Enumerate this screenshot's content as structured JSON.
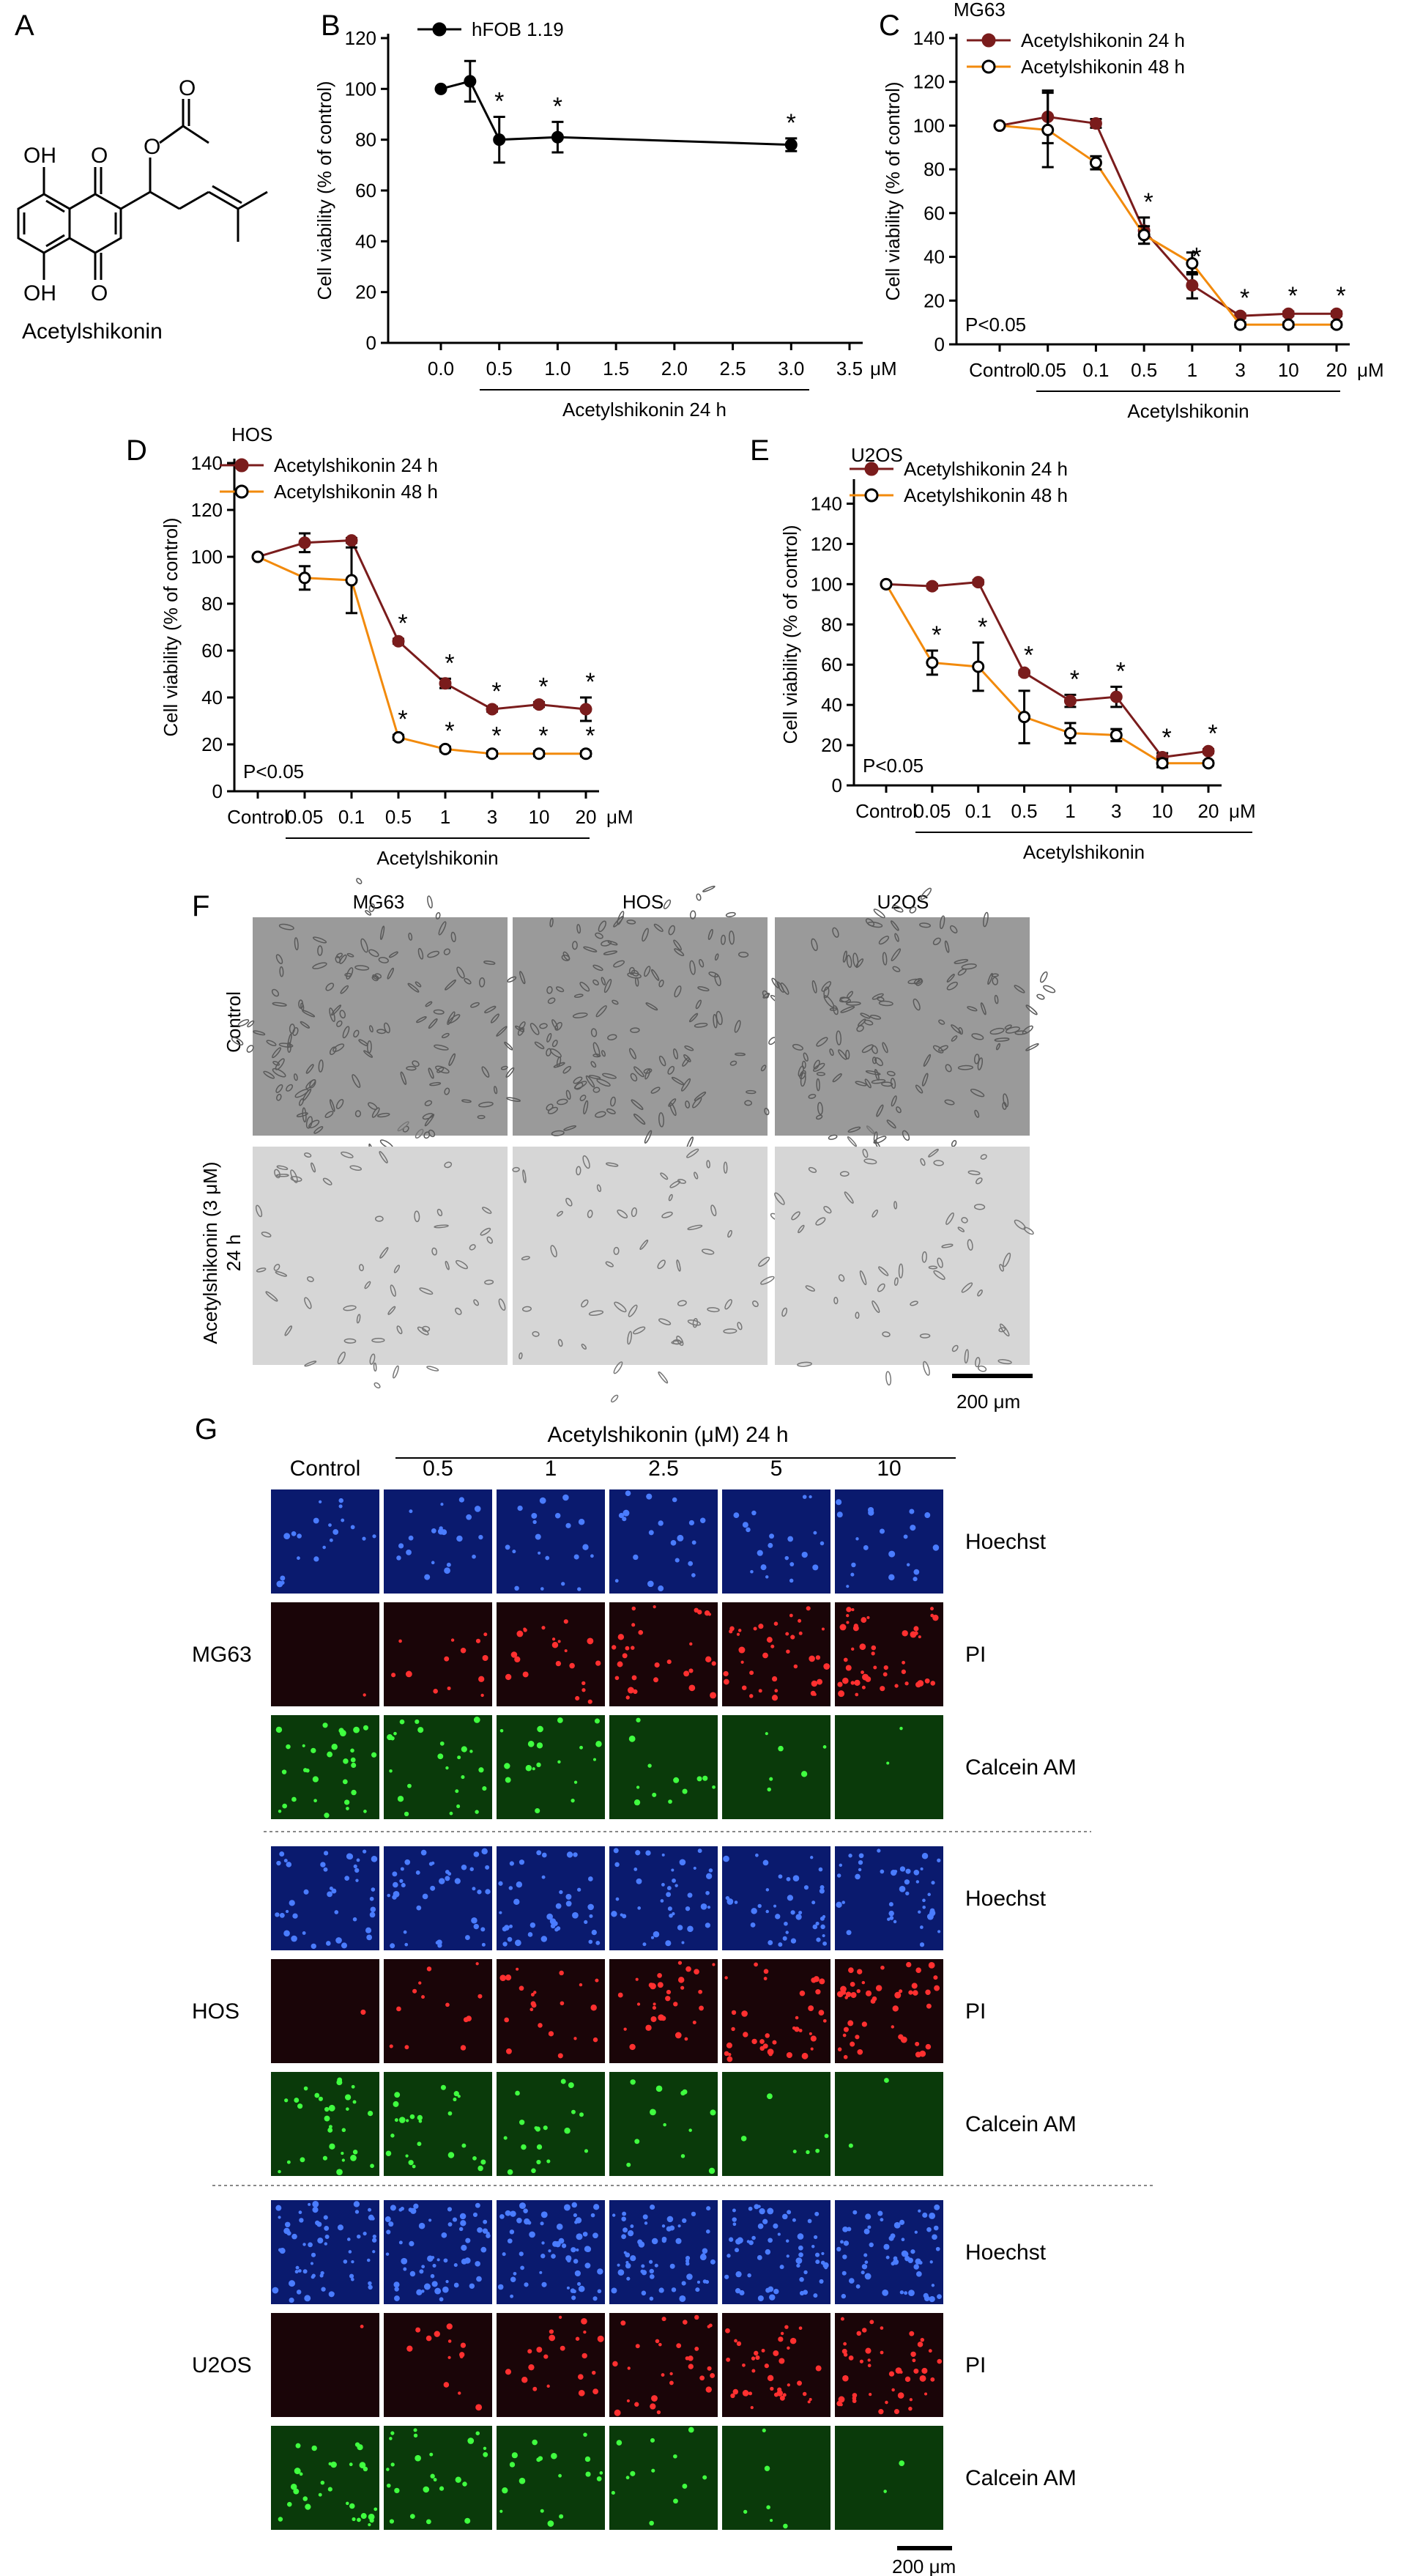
{
  "panel_a": {
    "letter": "A",
    "compound_name": "Acetylshikonin",
    "atom_labels": [
      "OH",
      "O",
      "O",
      "O",
      "OH",
      "O"
    ]
  },
  "chart_data": [
    {
      "panel": "B",
      "type": "line",
      "legend": "top-left",
      "grid": false,
      "x_numeric": [
        0.0,
        0.5,
        1.0,
        1.5,
        2.0,
        2.5,
        3.0,
        3.5
      ],
      "x_tick_labels": [
        "0.0",
        "0.5",
        "1.0",
        "1.5",
        "2.0",
        "2.5",
        "3.0",
        "3.5"
      ],
      "x_unit": "μM",
      "xlabel": "Acetylshikonin 24 h",
      "ylabel": "Cell viability (% of control)",
      "ylim": [
        0,
        120
      ],
      "y_ticks": [
        0,
        20,
        40,
        60,
        80,
        100,
        120
      ],
      "series": [
        {
          "name": "hFOB 1.19",
          "color": "#000000",
          "filled": true,
          "points": [
            {
              "x": 0.0,
              "y": 100,
              "err": 0,
              "sig": false
            },
            {
              "x": 0.25,
              "y": 103,
              "err": 8,
              "sig": false
            },
            {
              "x": 0.5,
              "y": 80,
              "err": 9,
              "sig": true
            },
            {
              "x": 1.0,
              "y": 81,
              "err": 6,
              "sig": true
            },
            {
              "x": 3.0,
              "y": 78,
              "err": 2.5,
              "sig": true
            }
          ]
        }
      ]
    },
    {
      "panel": "C",
      "type": "line",
      "legend": "top-left",
      "grid": false,
      "cell_line": "MG63",
      "categories": [
        "Control",
        "0.05",
        "0.1",
        "0.5",
        "1",
        "3",
        "10",
        "20"
      ],
      "x_unit": "μM",
      "xlabel": "Acetylshikonin",
      "ylabel": "Cell viability (% of control)",
      "ylim": [
        0,
        140
      ],
      "y_ticks": [
        0,
        20,
        40,
        60,
        80,
        100,
        120,
        140
      ],
      "pvalue": "P<0.05",
      "series": [
        {
          "name": "Acetylshikonin 24 h",
          "color": "#7a1c1c",
          "filled": true,
          "values": [
            100,
            104,
            101,
            52,
            27,
            13,
            14,
            14
          ],
          "errors": [
            0,
            12,
            2,
            6,
            6,
            1,
            1,
            1
          ],
          "sig": [
            false,
            false,
            false,
            true,
            true,
            true,
            true,
            true
          ]
        },
        {
          "name": "Acetylshikonin 48 h",
          "color": "#f28a0c",
          "filled": false,
          "values": [
            100,
            98,
            83,
            50,
            37,
            9,
            9,
            9
          ],
          "errors": [
            0,
            17,
            3,
            4,
            5,
            1,
            1,
            1
          ],
          "sig": [
            false,
            false,
            false,
            false,
            false,
            false,
            false,
            false
          ]
        }
      ]
    },
    {
      "panel": "D",
      "type": "line",
      "legend": "top-left",
      "grid": false,
      "cell_line": "HOS",
      "categories": [
        "Control",
        "0.05",
        "0.1",
        "0.5",
        "1",
        "3",
        "10",
        "20"
      ],
      "x_unit": "μM",
      "xlabel": "Acetylshikonin",
      "ylabel": "Cell viability (% of control)",
      "ylim": [
        0,
        140
      ],
      "y_ticks": [
        0,
        20,
        40,
        60,
        80,
        100,
        120,
        140
      ],
      "pvalue": "P<0.05",
      "series": [
        {
          "name": "Acetylshikonin 24 h",
          "color": "#7a1c1c",
          "filled": true,
          "values": [
            100,
            106,
            107,
            64,
            46,
            35,
            37,
            35
          ],
          "errors": [
            0,
            4,
            1,
            1,
            2,
            1,
            1,
            5
          ],
          "sig": [
            false,
            false,
            false,
            true,
            true,
            true,
            true,
            true
          ]
        },
        {
          "name": "Acetylshikonin 48 h",
          "color": "#f28a0c",
          "filled": false,
          "values": [
            100,
            91,
            90,
            23,
            18,
            16,
            16,
            16
          ],
          "errors": [
            0,
            5,
            14,
            1,
            1,
            1,
            1,
            1
          ],
          "sig": [
            false,
            false,
            false,
            true,
            true,
            true,
            true,
            true
          ]
        }
      ]
    },
    {
      "panel": "E",
      "type": "line",
      "legend": "top-left",
      "grid": false,
      "cell_line": "U2OS",
      "categories": [
        "Control",
        "0.05",
        "0.1",
        "0.5",
        "1",
        "3",
        "10",
        "20"
      ],
      "x_unit": "μM",
      "xlabel": "Acetylshikonin",
      "ylabel": "Cell viability (% of control)",
      "ylim": [
        0,
        150
      ],
      "y_ticks": [
        0,
        20,
        40,
        60,
        80,
        100,
        120,
        140
      ],
      "pvalue": "P<0.05",
      "series": [
        {
          "name": "Acetylshikonin 24 h",
          "color": "#7a1c1c",
          "filled": true,
          "values": [
            100,
            99,
            101,
            56,
            42,
            44,
            14,
            17
          ],
          "errors": [
            0,
            1,
            1,
            1,
            3,
            5,
            2,
            1
          ],
          "sig": [
            false,
            false,
            false,
            true,
            true,
            true,
            true,
            true
          ]
        },
        {
          "name": "Acetylshikonin 48 h",
          "color": "#f28a0c",
          "filled": false,
          "values": [
            100,
            61,
            59,
            34,
            26,
            25,
            11,
            11
          ],
          "errors": [
            0,
            6,
            12,
            13,
            5,
            3,
            2,
            1
          ],
          "sig": [
            false,
            true,
            true,
            false,
            false,
            false,
            false,
            false
          ]
        }
      ]
    }
  ],
  "panel_f": {
    "letter": "F",
    "columns": [
      "MG63",
      "HOS",
      "U2OS"
    ],
    "rows": [
      "Control",
      "Acetylshikonin (3 μM)",
      "24 h"
    ],
    "scale_bar": "200 μm"
  },
  "panel_g": {
    "letter": "G",
    "header": "Acetylshikonin (μM) 24 h",
    "columns": [
      "Control",
      "0.5",
      "1",
      "2.5",
      "5",
      "10"
    ],
    "stains": [
      "Hoechst",
      "PI",
      "Calcein AM"
    ],
    "cell_lines": [
      "MG63",
      "HOS",
      "U2OS"
    ],
    "scale_bar": "200 μm",
    "stain_colors": {
      "Hoechst": "#1b2fd1",
      "PI": "#e0202a",
      "Calcein AM": "#2fd02a"
    }
  }
}
